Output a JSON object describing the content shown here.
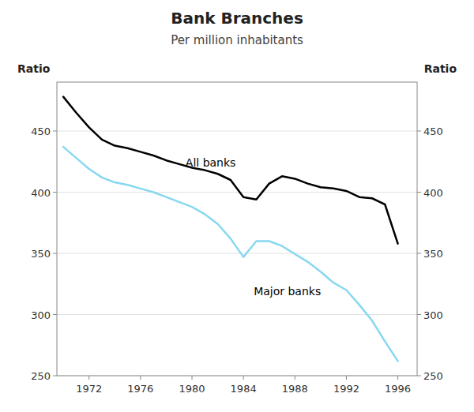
{
  "chart_data": {
    "type": "line",
    "title": "Bank Branches",
    "subtitle": "Per million inhabitants",
    "y_label": "Ratio",
    "y2_label": "Ratio",
    "xlim": [
      1969.5,
      1997.5
    ],
    "xticks": [
      1972,
      1976,
      1980,
      1984,
      1988,
      1992,
      1996
    ],
    "ylim": [
      250,
      490
    ],
    "yticks": [
      250,
      300,
      350,
      400,
      450
    ],
    "y2lim": [
      250,
      490
    ],
    "y2ticks": [
      250,
      300,
      350,
      400,
      450
    ],
    "grid": true,
    "series": [
      {
        "color": "#000000",
        "x": [
          1970,
          1971,
          1972,
          1973,
          1974,
          1975,
          1976,
          1977,
          1978,
          1979,
          1980,
          1981,
          1982,
          1983,
          1984,
          1985,
          1986,
          1987,
          1988,
          1989,
          1990,
          1991,
          1992,
          1993,
          1994,
          1995,
          1996
        ],
        "values": [
          478,
          465,
          453,
          443,
          438,
          436,
          433,
          430,
          426,
          423,
          420,
          418,
          415,
          410,
          396,
          394,
          407,
          413,
          411,
          407,
          404,
          403,
          401,
          396,
          395,
          390,
          358
        ]
      },
      {
        "color": "#87d8f0",
        "x": [
          1970,
          1971,
          1972,
          1973,
          1974,
          1975,
          1976,
          1977,
          1978,
          1979,
          1980,
          1981,
          1982,
          1983,
          1984,
          1985,
          1986,
          1987,
          1989,
          1990,
          1991,
          1992,
          1993,
          1994,
          1995,
          1996
        ],
        "values": [
          437,
          428,
          419,
          412,
          408,
          406,
          403,
          400,
          396,
          392,
          388,
          382,
          374,
          362,
          347,
          360,
          360,
          356,
          343,
          335,
          326,
          320,
          308,
          295,
          278,
          262
        ]
      }
    ],
    "annotations": [
      {
        "text": "All banks",
        "x": 1979.5,
        "y": 421
      },
      {
        "text": "Major banks",
        "x": 1984.8,
        "y": 316
      }
    ]
  }
}
